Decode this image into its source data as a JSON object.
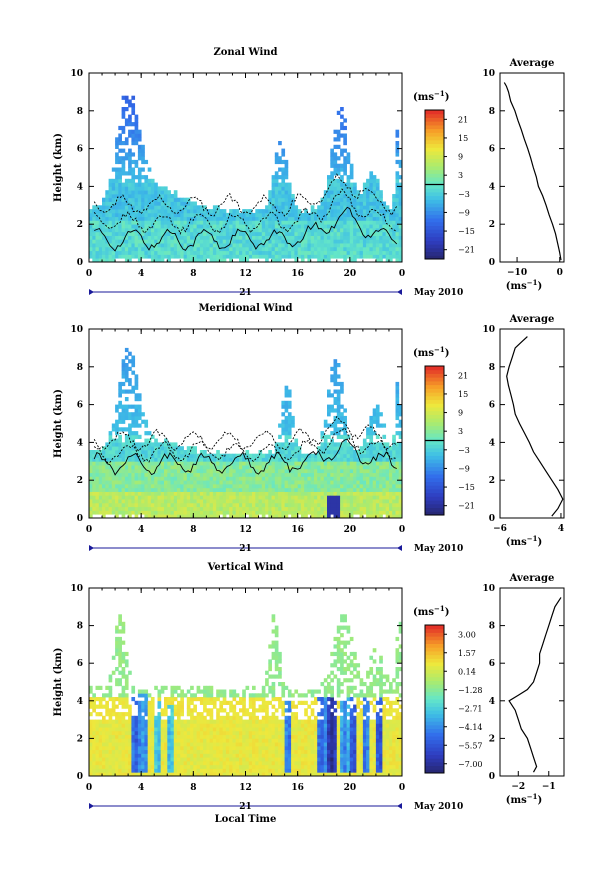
{
  "chart_data": [
    {
      "type": "heatmap",
      "title": "Zonal Wind",
      "ylabel": "Height (km)",
      "xlim": [
        0,
        24
      ],
      "ylim": [
        0,
        10
      ],
      "x_tick_labels": [
        "0",
        "4",
        "8",
        "12",
        "16",
        "20",
        "0"
      ],
      "y_tick_labels": [
        "0",
        "2",
        "4",
        "6",
        "8",
        "10"
      ],
      "day_label": "21",
      "month_label": "May 2010",
      "colorbar": {
        "unit": "(ms",
        "unit_exp": "−1",
        "ticks": [
          "21",
          "15",
          "9",
          "3",
          "−3",
          "−9",
          "−15",
          "−21"
        ],
        "range": [
          -24,
          24
        ]
      },
      "zero_contour_level": 0,
      "average": {
        "title": "Average",
        "xlabel": "(ms",
        "xlabel_exp": "−1",
        "x_tick_labels": [
          "−10",
          "0"
        ],
        "xlim": [
          -14,
          1
        ],
        "profile": [
          {
            "h": 0.1,
            "v": 0.3
          },
          {
            "h": 0.5,
            "v": 0.0
          },
          {
            "h": 1.0,
            "v": -0.5
          },
          {
            "h": 1.5,
            "v": -1.0
          },
          {
            "h": 2.0,
            "v": -1.7
          },
          {
            "h": 2.5,
            "v": -2.5
          },
          {
            "h": 3.0,
            "v": -3.2
          },
          {
            "h": 3.5,
            "v": -4.0
          },
          {
            "h": 4.0,
            "v": -5.0
          },
          {
            "h": 4.5,
            "v": -5.5
          },
          {
            "h": 5.0,
            "v": -6.2
          },
          {
            "h": 5.5,
            "v": -6.8
          },
          {
            "h": 6.0,
            "v": -7.5
          },
          {
            "h": 6.5,
            "v": -8.3
          },
          {
            "h": 7.0,
            "v": -9.0
          },
          {
            "h": 7.5,
            "v": -9.8
          },
          {
            "h": 8.0,
            "v": -10.5
          },
          {
            "h": 8.5,
            "v": -11.5
          },
          {
            "h": 9.0,
            "v": -12.0
          },
          {
            "h": 9.3,
            "v": -12.5
          },
          {
            "h": 9.5,
            "v": -13.0
          }
        ]
      }
    },
    {
      "type": "heatmap",
      "title": "Meridional Wind",
      "ylabel": "Height (km)",
      "xlim": [
        0,
        24
      ],
      "ylim": [
        0,
        10
      ],
      "x_tick_labels": [
        "0",
        "4",
        "8",
        "12",
        "16",
        "20",
        "0"
      ],
      "y_tick_labels": [
        "0",
        "2",
        "4",
        "6",
        "8",
        "10"
      ],
      "day_label": "21",
      "month_label": "May 2010",
      "colorbar": {
        "unit": "(ms",
        "unit_exp": "−1",
        "ticks": [
          "21",
          "15",
          "9",
          "3",
          "−3",
          "−9",
          "−15",
          "−21"
        ],
        "range": [
          -24,
          24
        ]
      },
      "zero_contour_level": 0,
      "average": {
        "title": "Average",
        "xlabel": "(ms",
        "xlabel_exp": "−1",
        "x_tick_labels": [
          "−6",
          "4"
        ],
        "xlim": [
          -6,
          4.5
        ],
        "profile": [
          {
            "h": 0.1,
            "v": 2.5
          },
          {
            "h": 0.5,
            "v": 3.5
          },
          {
            "h": 1.0,
            "v": 4.3
          },
          {
            "h": 1.5,
            "v": 3.5
          },
          {
            "h": 2.0,
            "v": 2.5
          },
          {
            "h": 2.5,
            "v": 1.5
          },
          {
            "h": 3.0,
            "v": 0.5
          },
          {
            "h": 3.5,
            "v": -0.5
          },
          {
            "h": 4.0,
            "v": -1.2
          },
          {
            "h": 4.5,
            "v": -2.0
          },
          {
            "h": 5.0,
            "v": -2.8
          },
          {
            "h": 5.5,
            "v": -3.5
          },
          {
            "h": 6.0,
            "v": -3.8
          },
          {
            "h": 6.5,
            "v": -4.2
          },
          {
            "h": 7.0,
            "v": -4.6
          },
          {
            "h": 7.5,
            "v": -4.9
          },
          {
            "h": 8.0,
            "v": -4.5
          },
          {
            "h": 8.5,
            "v": -4.0
          },
          {
            "h": 9.0,
            "v": -3.5
          },
          {
            "h": 9.3,
            "v": -2.5
          },
          {
            "h": 9.6,
            "v": -1.5
          }
        ]
      }
    },
    {
      "type": "heatmap",
      "title": "Vertical Wind",
      "ylabel": "Height (km)",
      "xlabel": "Local Time",
      "xlim": [
        0,
        24
      ],
      "ylim": [
        0,
        10
      ],
      "x_tick_labels": [
        "0",
        "4",
        "8",
        "12",
        "16",
        "20",
        "0"
      ],
      "y_tick_labels": [
        "0",
        "2",
        "4",
        "6",
        "8",
        "10"
      ],
      "day_label": "21",
      "month_label": "May 2010",
      "colorbar": {
        "unit": "(ms",
        "unit_exp": "−1",
        "ticks": [
          "3.00",
          "1.57",
          "0.14",
          "−1.28",
          "−2.71",
          "−4.14",
          "−5.57",
          "−7.00"
        ],
        "range": [
          -7.7,
          3.7
        ]
      },
      "average": {
        "title": "Average",
        "xlabel": "(ms",
        "xlabel_exp": "−1",
        "x_tick_labels": [
          "−2",
          "−1"
        ],
        "xlim": [
          -2.6,
          -0.5
        ],
        "profile": [
          {
            "h": 0.2,
            "v": -1.5
          },
          {
            "h": 0.5,
            "v": -1.4
          },
          {
            "h": 1.0,
            "v": -1.5
          },
          {
            "h": 1.5,
            "v": -1.6
          },
          {
            "h": 2.0,
            "v": -1.7
          },
          {
            "h": 2.5,
            "v": -1.9
          },
          {
            "h": 3.0,
            "v": -2.0
          },
          {
            "h": 3.5,
            "v": -2.1
          },
          {
            "h": 4.0,
            "v": -2.3
          },
          {
            "h": 4.3,
            "v": -2.0
          },
          {
            "h": 4.6,
            "v": -1.7
          },
          {
            "h": 5.0,
            "v": -1.5
          },
          {
            "h": 5.5,
            "v": -1.4
          },
          {
            "h": 6.0,
            "v": -1.3
          },
          {
            "h": 6.5,
            "v": -1.3
          },
          {
            "h": 7.0,
            "v": -1.2
          },
          {
            "h": 7.5,
            "v": -1.1
          },
          {
            "h": 8.0,
            "v": -1.0
          },
          {
            "h": 8.5,
            "v": -0.9
          },
          {
            "h": 9.0,
            "v": -0.8
          },
          {
            "h": 9.5,
            "v": -0.6
          }
        ]
      }
    }
  ]
}
